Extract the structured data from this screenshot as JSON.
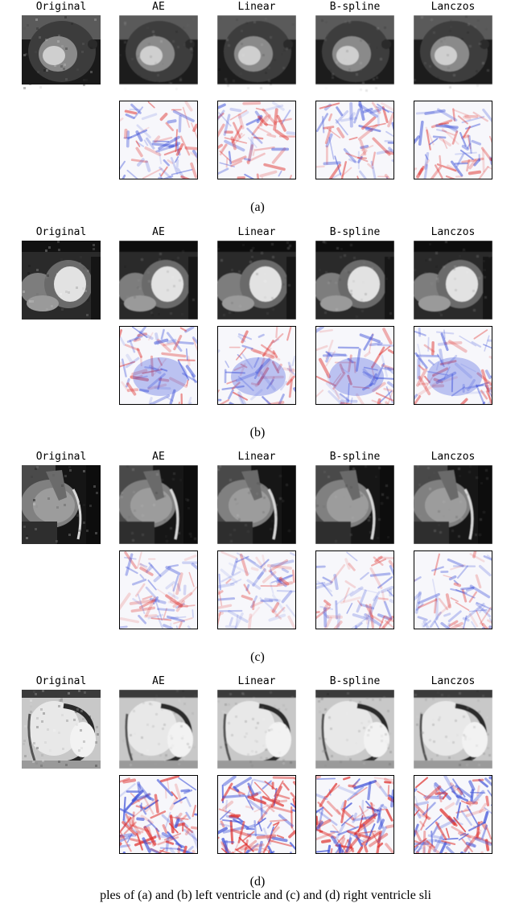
{
  "columns": [
    "Original",
    "AE",
    "Linear",
    "B-spline",
    "Lanczos"
  ],
  "panels": [
    {
      "label": "(a)",
      "style": "a"
    },
    {
      "label": "(b)",
      "style": "b"
    },
    {
      "label": "(c)",
      "style": "c"
    },
    {
      "label": "(d)",
      "style": "d"
    }
  ],
  "figure_caption": "ples of (a) and (b) left ventricle and (c) and (d) right ventricle sli"
}
